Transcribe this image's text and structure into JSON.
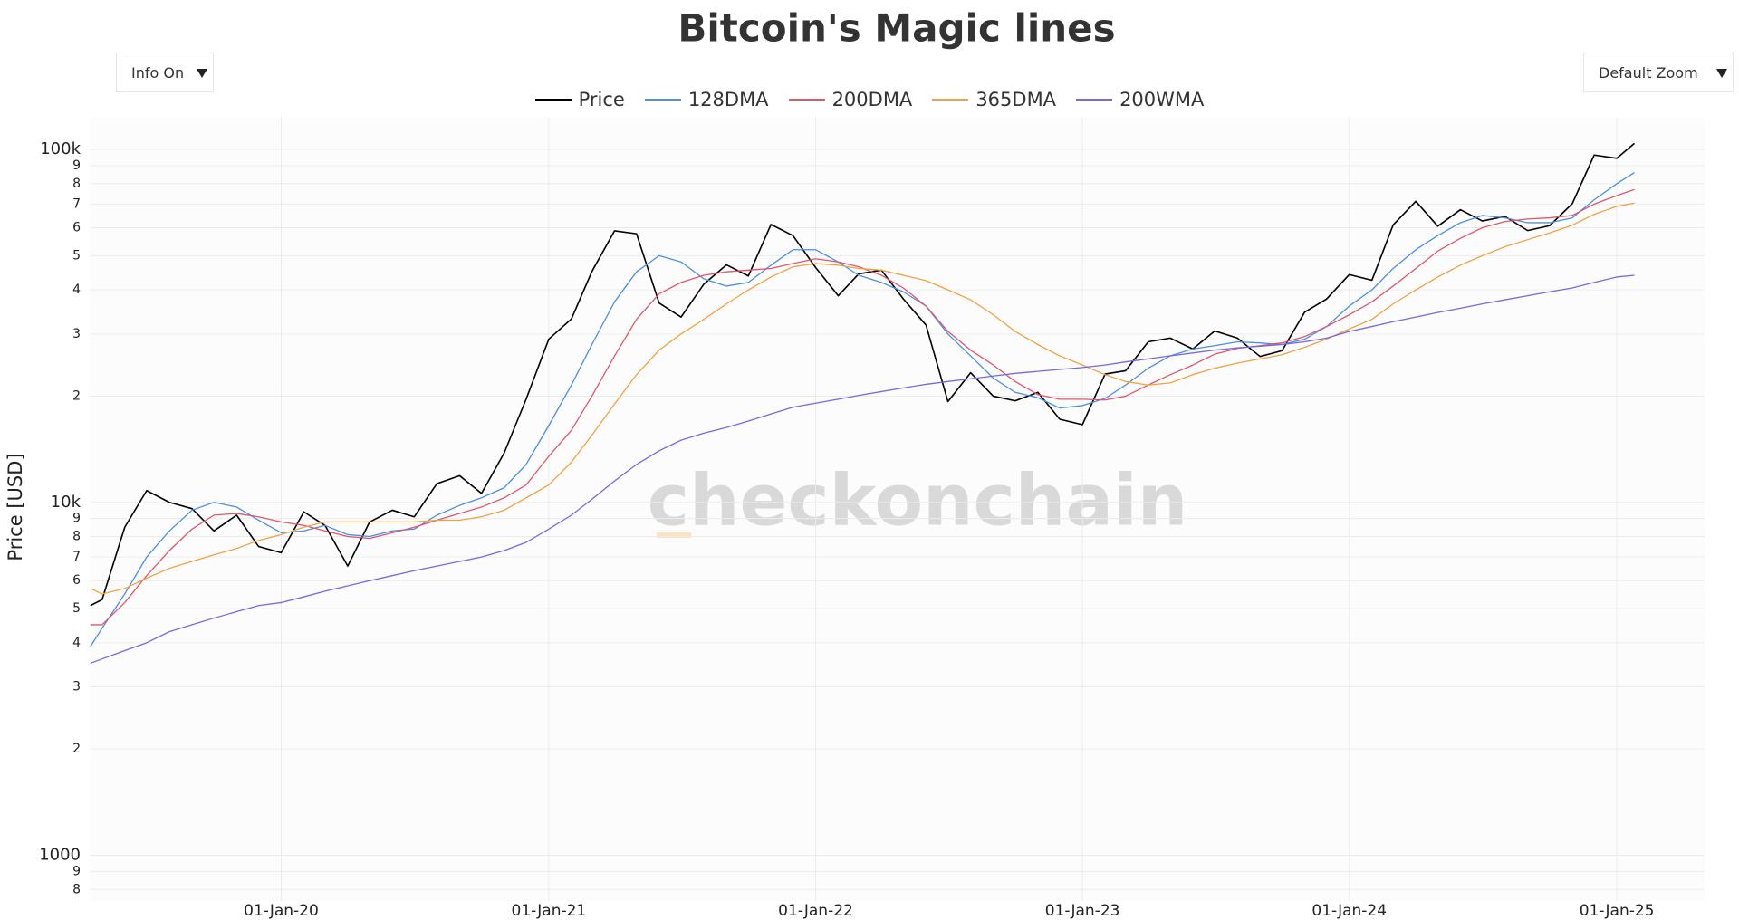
{
  "chart_data": {
    "type": "line",
    "title": "Bitcoin's Magic lines",
    "ylabel": "Price [USD]",
    "watermark": "checkonchain",
    "log_y": true,
    "grid": true,
    "legend_position": "top",
    "controls": [
      "Info On",
      "Default Zoom"
    ],
    "xlim": [
      "2019-04-14",
      "2025-05-01"
    ],
    "xticks": [
      {
        "value": "2020-01-01",
        "label": "01-Jan-20"
      },
      {
        "value": "2021-01-01",
        "label": "01-Jan-21"
      },
      {
        "value": "2022-01-01",
        "label": "01-Jan-22"
      },
      {
        "value": "2023-01-01",
        "label": "01-Jan-23"
      },
      {
        "value": "2024-01-01",
        "label": "01-Jan-24"
      },
      {
        "value": "2025-01-01",
        "label": "01-Jan-25"
      }
    ],
    "ylim": [
      742,
      123000
    ],
    "yticks": [
      {
        "value": 800,
        "label": "8"
      },
      {
        "value": 900,
        "label": "9"
      },
      1000,
      {
        "value": 2000,
        "label": "2"
      },
      {
        "value": 3000,
        "label": "3"
      },
      {
        "value": 4000,
        "label": "4"
      },
      {
        "value": 5000,
        "label": "5"
      },
      {
        "value": 6000,
        "label": "6"
      },
      {
        "value": 7000,
        "label": "7"
      },
      {
        "value": 8000,
        "label": "8"
      },
      {
        "value": 9000,
        "label": "9"
      },
      {
        "value": 10000,
        "label": "10k"
      },
      {
        "value": 20000,
        "label": "2"
      },
      {
        "value": 30000,
        "label": "3"
      },
      {
        "value": 40000,
        "label": "4"
      },
      {
        "value": 50000,
        "label": "5"
      },
      {
        "value": 60000,
        "label": "6"
      },
      {
        "value": 70000,
        "label": "7"
      },
      {
        "value": 80000,
        "label": "8"
      },
      {
        "value": 90000,
        "label": "9"
      },
      {
        "value": 100000,
        "label": "100k"
      }
    ],
    "x": [
      "2019-04-15",
      "2019-05-01",
      "2019-06-01",
      "2019-07-01",
      "2019-08-01",
      "2019-09-01",
      "2019-10-01",
      "2019-11-01",
      "2019-12-01",
      "2020-01-01",
      "2020-02-01",
      "2020-03-01",
      "2020-04-01",
      "2020-05-01",
      "2020-06-01",
      "2020-07-01",
      "2020-08-01",
      "2020-09-01",
      "2020-10-01",
      "2020-11-01",
      "2020-12-01",
      "2021-01-01",
      "2021-02-01",
      "2021-03-01",
      "2021-04-01",
      "2021-05-01",
      "2021-06-01",
      "2021-07-01",
      "2021-08-01",
      "2021-09-01",
      "2021-10-01",
      "2021-11-01",
      "2021-12-01",
      "2022-01-01",
      "2022-02-01",
      "2022-03-01",
      "2022-04-01",
      "2022-05-01",
      "2022-06-01",
      "2022-07-01",
      "2022-08-01",
      "2022-09-01",
      "2022-10-01",
      "2022-11-01",
      "2022-12-01",
      "2023-01-01",
      "2023-02-01",
      "2023-03-01",
      "2023-04-01",
      "2023-05-01",
      "2023-06-01",
      "2023-07-01",
      "2023-08-01",
      "2023-09-01",
      "2023-10-01",
      "2023-11-01",
      "2023-12-01",
      "2024-01-01",
      "2024-02-01",
      "2024-03-01",
      "2024-04-01",
      "2024-05-01",
      "2024-06-01",
      "2024-07-01",
      "2024-08-01",
      "2024-09-01",
      "2024-10-01",
      "2024-11-01",
      "2024-12-01",
      "2025-01-01",
      "2025-01-25"
    ],
    "series": [
      {
        "name": "Price",
        "color": "#000000",
        "width": 1.6,
        "values": [
          5100,
          5300,
          8500,
          10800,
          10000,
          9600,
          8300,
          9200,
          7500,
          7200,
          9400,
          8600,
          6600,
          8800,
          9500,
          9100,
          11300,
          11900,
          10600,
          13800,
          19600,
          29000,
          33100,
          45100,
          58800,
          57700,
          36700,
          33500,
          41500,
          47100,
          43800,
          61300,
          57000,
          46300,
          38500,
          44400,
          45500,
          37700,
          31800,
          19300,
          23300,
          20000,
          19400,
          20500,
          17200,
          16600,
          23100,
          23600,
          28500,
          29200,
          27200,
          30600,
          29200,
          25900,
          26900,
          34600,
          37700,
          44200,
          42600,
          61100,
          71300,
          60600,
          67500,
          62700,
          64600,
          58900,
          60800,
          70200,
          96400,
          94400,
          104000
        ]
      },
      {
        "name": "128DMA",
        "color": "#4a8fe2",
        "width": 1.3,
        "values": [
          3900,
          4400,
          5500,
          7000,
          8300,
          9500,
          10000,
          9700,
          8900,
          8200,
          8300,
          8600,
          8100,
          8000,
          8300,
          8400,
          9200,
          9800,
          10300,
          11000,
          12800,
          16500,
          21500,
          28000,
          37000,
          45000,
          50000,
          48000,
          43000,
          41000,
          42000,
          47000,
          52000,
          52000,
          48000,
          44000,
          42000,
          39500,
          36000,
          30000,
          26000,
          22500,
          20500,
          19800,
          18500,
          18800,
          19700,
          21500,
          24000,
          26000,
          27200,
          27800,
          28500,
          28300,
          28000,
          29000,
          31500,
          36000,
          40000,
          46000,
          52000,
          57000,
          62000,
          65000,
          64000,
          62000,
          62000,
          64000,
          72000,
          80000,
          86000
        ]
      },
      {
        "name": "200DMA",
        "color": "#e0566a",
        "width": 1.3,
        "values": [
          4500,
          4500,
          5200,
          6200,
          7300,
          8400,
          9200,
          9300,
          9100,
          8800,
          8600,
          8300,
          8000,
          7900,
          8200,
          8500,
          8900,
          9300,
          9700,
          10300,
          11200,
          13500,
          16000,
          20000,
          26000,
          33000,
          39000,
          42000,
          44000,
          45000,
          45500,
          46000,
          47500,
          49000,
          48000,
          46500,
          44000,
          40500,
          36000,
          30500,
          27000,
          24500,
          22000,
          20200,
          19600,
          19600,
          19500,
          20000,
          21500,
          23000,
          24500,
          26300,
          27300,
          27800,
          28300,
          29500,
          31500,
          34000,
          37000,
          41000,
          46000,
          51500,
          56000,
          60000,
          62500,
          63500,
          64000,
          65000,
          70000,
          74000,
          77000
        ]
      },
      {
        "name": "365DMA",
        "color": "#f0a23e",
        "width": 1.3,
        "values": [
          5700,
          5500,
          5700,
          6100,
          6500,
          6800,
          7100,
          7400,
          7800,
          8100,
          8500,
          8800,
          8800,
          8800,
          8800,
          8800,
          8900,
          8900,
          9100,
          9500,
          10300,
          11200,
          13000,
          15500,
          19000,
          23000,
          27000,
          30000,
          33000,
          36500,
          40000,
          43500,
          46500,
          47500,
          47000,
          46000,
          45500,
          44000,
          42500,
          40000,
          37500,
          34000,
          30500,
          28000,
          26000,
          24500,
          23000,
          22000,
          21500,
          21800,
          23000,
          24000,
          24800,
          25500,
          26200,
          27500,
          29000,
          31000,
          33000,
          36500,
          40000,
          43500,
          47000,
          50000,
          53000,
          55500,
          58000,
          61000,
          65500,
          69000,
          70500
        ]
      },
      {
        "name": "200WMA",
        "color": "#7768e4",
        "width": 1.3,
        "values": [
          3500,
          3600,
          3800,
          4000,
          4300,
          4500,
          4700,
          4900,
          5100,
          5200,
          5400,
          5600,
          5800,
          6000,
          6200,
          6400,
          6600,
          6800,
          7000,
          7300,
          7700,
          8400,
          9200,
          10200,
          11500,
          12800,
          14000,
          15000,
          15700,
          16300,
          17000,
          17800,
          18600,
          19100,
          19600,
          20100,
          20600,
          21100,
          21600,
          22000,
          22400,
          22800,
          23200,
          23500,
          23800,
          24100,
          24500,
          25000,
          25500,
          26000,
          26500,
          27000,
          27400,
          27700,
          28000,
          28500,
          29200,
          30500,
          31500,
          32500,
          33500,
          34500,
          35500,
          36500,
          37500,
          38500,
          39500,
          40500,
          42000,
          43500,
          44000
        ]
      }
    ]
  }
}
